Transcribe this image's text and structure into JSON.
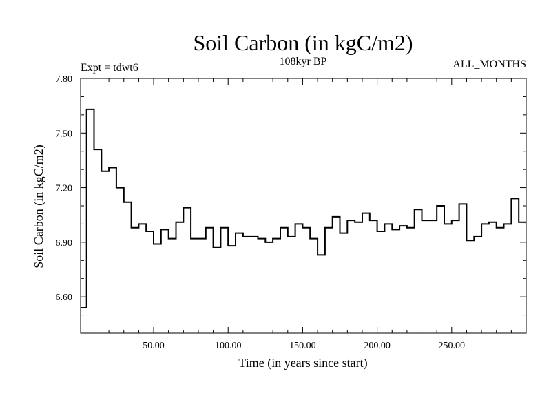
{
  "chart_data": {
    "type": "line",
    "step": true,
    "title": "Soil Carbon (in kgC/m2)",
    "subtitle_center": "108kyr BP",
    "subtitle_left": "Expt = tdwt6",
    "subtitle_right": "ALL_MONTHS",
    "xlabel": "Time (in years since start)",
    "ylabel": "Soil Carbon (in kgC/m2)",
    "xlim": [
      1,
      300
    ],
    "ylim": [
      6.4,
      7.8
    ],
    "xticks": [
      {
        "value": 50,
        "label": "50.00"
      },
      {
        "value": 100,
        "label": "100.00"
      },
      {
        "value": 150,
        "label": "150.00"
      },
      {
        "value": 200,
        "label": "200.00"
      },
      {
        "value": 250,
        "label": "250.00"
      }
    ],
    "yticks": [
      {
        "value": 6.6,
        "label": "6.60"
      },
      {
        "value": 6.9,
        "label": "6.90"
      },
      {
        "value": 7.2,
        "label": "7.20"
      },
      {
        "value": 7.5,
        "label": "7.50"
      },
      {
        "value": 7.8,
        "label": "7.80"
      }
    ],
    "series": [
      {
        "name": "Soil Carbon",
        "x": [
          1,
          5,
          10,
          15,
          20,
          25,
          30,
          35,
          40,
          45,
          50,
          55,
          60,
          65,
          70,
          75,
          80,
          85,
          90,
          95,
          100,
          105,
          110,
          115,
          120,
          125,
          130,
          135,
          140,
          145,
          150,
          155,
          160,
          165,
          170,
          175,
          180,
          185,
          190,
          195,
          200,
          205,
          210,
          215,
          220,
          225,
          230,
          235,
          240,
          245,
          250,
          255,
          260,
          265,
          270,
          275,
          280,
          285,
          290,
          295,
          300
        ],
        "values": [
          6.54,
          7.63,
          7.41,
          7.29,
          7.31,
          7.2,
          7.12,
          6.98,
          7.0,
          6.96,
          6.89,
          6.97,
          6.92,
          7.01,
          7.09,
          6.92,
          6.92,
          6.98,
          6.87,
          6.98,
          6.88,
          6.95,
          6.93,
          6.93,
          6.92,
          6.9,
          6.92,
          6.98,
          6.93,
          7.0,
          6.98,
          6.92,
          6.83,
          6.98,
          7.04,
          6.95,
          7.02,
          7.01,
          7.06,
          7.02,
          6.96,
          7.0,
          6.97,
          6.99,
          6.98,
          7.08,
          7.02,
          7.02,
          7.1,
          7.0,
          7.02,
          7.11,
          6.91,
          6.93,
          7.0,
          7.01,
          6.98,
          7.0,
          7.14,
          7.01,
          7.01
        ]
      }
    ]
  }
}
